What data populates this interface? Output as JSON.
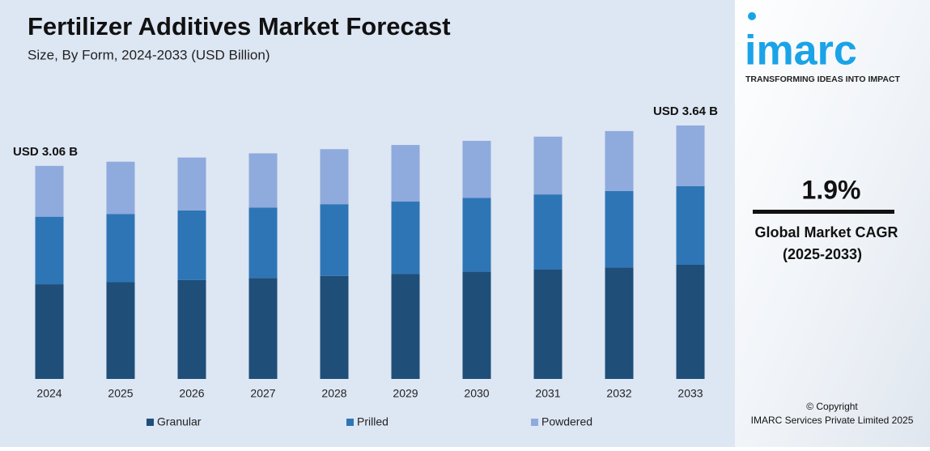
{
  "chart_data": {
    "type": "stacked-bar",
    "title": "Fertilizer Additives Market Forecast",
    "subtitle": "Size, By Form, 2024-2033 (USD Billion)",
    "categories": [
      "2024",
      "2025",
      "2026",
      "2027",
      "2028",
      "2029",
      "2030",
      "2031",
      "2032",
      "2033"
    ],
    "series": [
      {
        "name": "Granular",
        "color": "#1f4e79",
        "values": [
          1.36,
          1.39,
          1.42,
          1.45,
          1.48,
          1.51,
          1.54,
          1.57,
          1.6,
          1.64
        ]
      },
      {
        "name": "Prilled",
        "color": "#2e75b6",
        "values": [
          0.97,
          0.98,
          1.0,
          1.01,
          1.03,
          1.04,
          1.06,
          1.08,
          1.1,
          1.13
        ]
      },
      {
        "name": "Powdered",
        "color": "#8faadc",
        "values": [
          0.73,
          0.75,
          0.76,
          0.78,
          0.79,
          0.81,
          0.82,
          0.83,
          0.86,
          0.87
        ]
      }
    ],
    "annotations": [
      {
        "category": "2024",
        "text": "USD 3.06 B"
      },
      {
        "category": "2033",
        "text": "USD 3.64 B"
      }
    ]
  },
  "panel": {
    "logo": "imarc",
    "tagline": "TRANSFORMING IDEAS INTO IMPACT",
    "cagr": "1.9%",
    "cagr_label": "Global Market CAGR",
    "cagr_period": "(2025-2033)",
    "copyright": "© Copyright",
    "company": "IMARC Services Private Limited 2025"
  }
}
